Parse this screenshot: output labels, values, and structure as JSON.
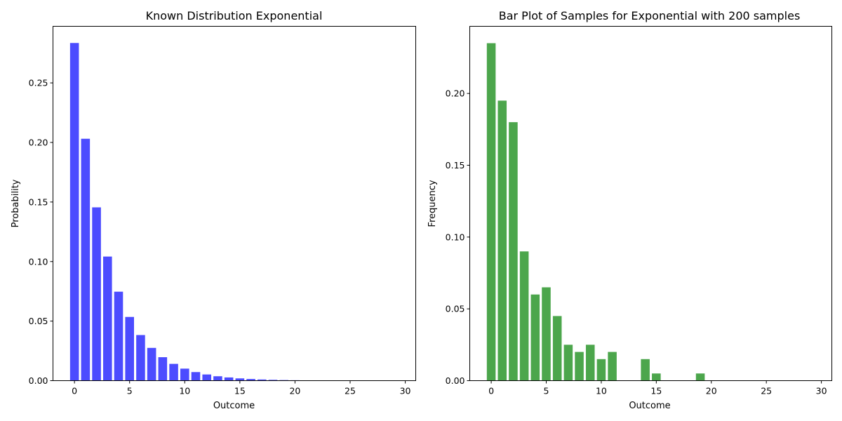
{
  "chart_data": [
    {
      "type": "bar",
      "title": "Known Distribution Exponential",
      "xlabel": "Outcome",
      "ylabel": "Probability",
      "color": "#0000ff",
      "opacity": 0.7,
      "grid": false,
      "xlim": [
        -1.95,
        30.95
      ],
      "ylim": [
        0,
        0.2975
      ],
      "xticks": [
        0,
        5,
        10,
        15,
        20,
        25,
        30
      ],
      "xtick_labels": [
        "0",
        "5",
        "10",
        "15",
        "20",
        "25",
        "30"
      ],
      "yticks": [
        0,
        0.05,
        0.1,
        0.15,
        0.2,
        0.25
      ],
      "ytick_labels": [
        "0.00",
        "0.05",
        "0.10",
        "0.15",
        "0.20",
        "0.25"
      ],
      "x": [
        0,
        1,
        2,
        3,
        4,
        5,
        6,
        7,
        8,
        9,
        10,
        11,
        12,
        13,
        14,
        15,
        16,
        17,
        18,
        19,
        20,
        21,
        22,
        23,
        24,
        25,
        26,
        27,
        28,
        29
      ],
      "values": [
        0.2835,
        0.2031,
        0.1455,
        0.1042,
        0.0747,
        0.0535,
        0.0383,
        0.0275,
        0.0197,
        0.0141,
        0.0101,
        0.0072,
        0.0052,
        0.0037,
        0.0027,
        0.0019,
        0.0014,
        0.00098,
        0.0007,
        0.0005,
        0.00036,
        0.00026,
        0.00019,
        0.00013,
        0.0001,
        7e-05,
        5e-05,
        4e-05,
        3e-05,
        2e-05
      ]
    },
    {
      "type": "bar",
      "title": "Bar Plot of Samples for Exponential with 200 samples",
      "xlabel": "Outcome",
      "ylabel": "Frequency",
      "color": "#008000",
      "opacity": 0.7,
      "grid": false,
      "xlim": [
        -1.95,
        30.95
      ],
      "ylim": [
        0,
        0.24675
      ],
      "xticks": [
        0,
        5,
        10,
        15,
        20,
        25,
        30
      ],
      "xtick_labels": [
        "0",
        "5",
        "10",
        "15",
        "20",
        "25",
        "30"
      ],
      "yticks": [
        0,
        0.05,
        0.1,
        0.15,
        0.2
      ],
      "ytick_labels": [
        "0.00",
        "0.05",
        "0.10",
        "0.15",
        "0.20"
      ],
      "x": [
        0,
        1,
        2,
        3,
        4,
        5,
        6,
        7,
        8,
        9,
        10,
        11,
        12,
        13,
        14,
        15,
        16,
        17,
        18,
        19,
        20,
        21,
        22,
        23,
        24,
        25,
        26,
        27,
        28,
        29
      ],
      "values": [
        0.235,
        0.195,
        0.18,
        0.09,
        0.06,
        0.065,
        0.045,
        0.025,
        0.02,
        0.025,
        0.015,
        0.02,
        0,
        0,
        0.015,
        0.005,
        0,
        0,
        0,
        0.005,
        0,
        0,
        0,
        0,
        0,
        0,
        0,
        0,
        0,
        0
      ]
    }
  ]
}
